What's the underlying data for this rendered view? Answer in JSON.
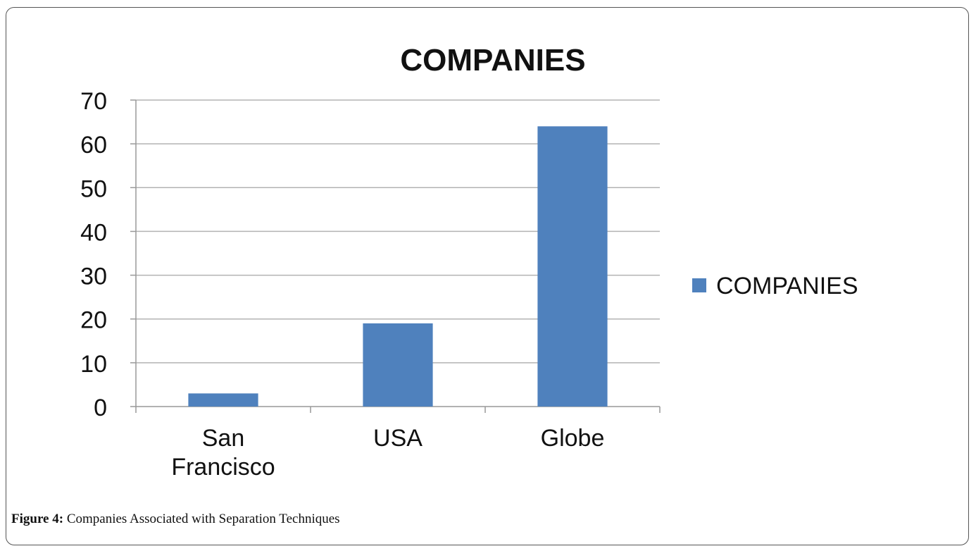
{
  "chart_data": {
    "type": "bar",
    "title": "COMPANIES",
    "categories": [
      "San Francisco",
      "USA",
      "Globe"
    ],
    "category_lines": [
      [
        "San",
        "Francisco"
      ],
      [
        "USA"
      ],
      [
        "Globe"
      ]
    ],
    "series": [
      {
        "name": "COMPANIES",
        "values": [
          3,
          19,
          64
        ],
        "color": "#4f81bd"
      }
    ],
    "ylim": [
      0,
      70
    ],
    "yticks": [
      0,
      10,
      20,
      30,
      40,
      50,
      60,
      70
    ],
    "grid": true,
    "legend": "right"
  },
  "caption": {
    "label": "Figure 4:",
    "text": " Companies Associated with Separation Techniques"
  }
}
